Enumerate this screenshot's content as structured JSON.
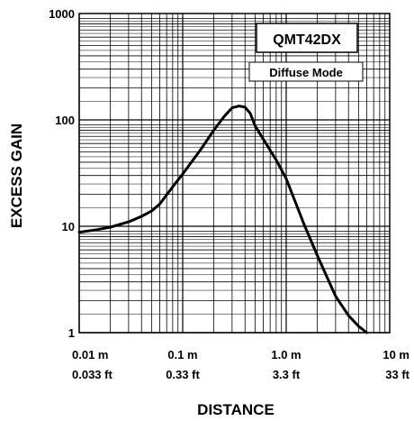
{
  "chart_data": {
    "type": "line",
    "title": "",
    "xlabel": "DISTANCE",
    "ylabel": "EXCESS GAIN",
    "x_scale": "log",
    "y_scale": "log",
    "xlim": [
      0.01,
      10
    ],
    "ylim": [
      1,
      1000
    ],
    "grid": true,
    "x_ticks": [
      {
        "value": 0.01,
        "label_m": "0.01 m",
        "label_ft": "0.033 ft"
      },
      {
        "value": 0.1,
        "label_m": "0.1 m",
        "label_ft": "0.33 ft"
      },
      {
        "value": 1,
        "label_m": "1.0 m",
        "label_ft": "3.3 ft"
      },
      {
        "value": 10,
        "label_m": "10 m",
        "label_ft": "33 ft"
      }
    ],
    "y_ticks": [
      {
        "value": 1,
        "label": "1"
      },
      {
        "value": 10,
        "label": "10"
      },
      {
        "value": 100,
        "label": "100"
      },
      {
        "value": 1000,
        "label": "1000"
      }
    ],
    "annotations": {
      "model": "QMT42DX",
      "mode": "Diffuse Mode"
    },
    "series": [
      {
        "color": "#000000",
        "x": [
          0.01,
          0.015,
          0.02,
          0.03,
          0.04,
          0.05,
          0.06,
          0.08,
          0.1,
          0.15,
          0.2,
          0.25,
          0.3,
          0.35,
          0.4,
          0.45,
          0.5,
          0.6,
          0.8,
          1.0,
          1.5,
          2.0,
          3.0,
          4.0,
          5.0,
          6.0
        ],
        "y": [
          8.8,
          9.3,
          9.8,
          11.0,
          12.4,
          13.9,
          16.2,
          23.5,
          31.0,
          53.0,
          80.0,
          107.0,
          130.0,
          135.0,
          132.0,
          115.0,
          88.0,
          66.0,
          42.0,
          28.0,
          10.2,
          5.3,
          2.2,
          1.45,
          1.15,
          1.0
        ]
      }
    ]
  }
}
